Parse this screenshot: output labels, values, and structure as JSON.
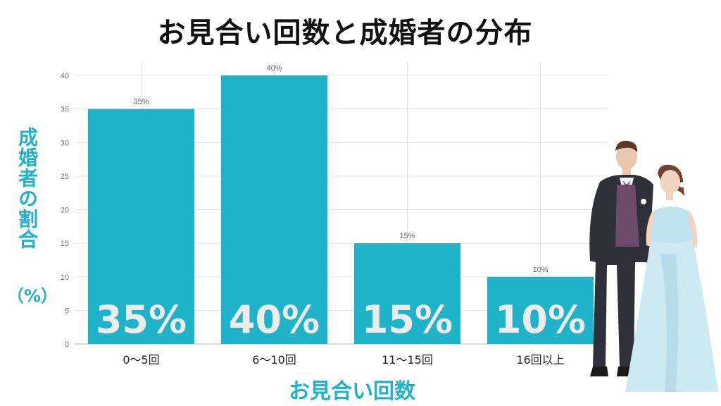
{
  "chart_data": {
    "type": "bar",
    "title": "お見合い回数と成婚者の分布",
    "xlabel": "お見合い回数",
    "ylabel": "成婚者の割合",
    "ylabel_unit": "（%）",
    "categories": [
      "0〜5回",
      "6〜10回",
      "11〜15回",
      "16回以上"
    ],
    "values": [
      35,
      40,
      15,
      10
    ],
    "data_labels": [
      "35%",
      "40%",
      "15%",
      "10%"
    ],
    "ylim": [
      0,
      40
    ],
    "yticks": [
      0,
      5,
      10,
      15,
      20,
      25,
      30,
      35,
      40
    ],
    "bar_color": "#1fb3c9",
    "grid": true
  },
  "illustration": "wedding-couple"
}
